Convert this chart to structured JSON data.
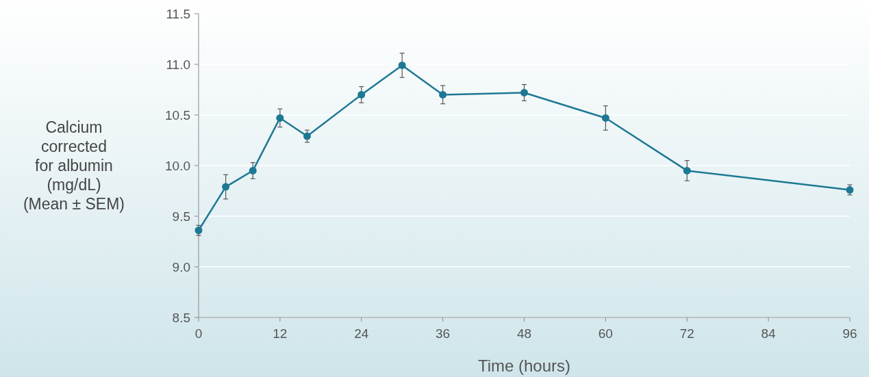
{
  "chart_data": {
    "type": "line",
    "xlabel": "Time (hours)",
    "ylabel": "Calcium\ncorrected\nfor albumin\n(mg/dL)\n(Mean ± SEM)",
    "x": [
      0,
      4,
      8,
      12,
      16,
      24,
      30,
      36,
      48,
      60,
      72,
      96
    ],
    "series": [
      {
        "color": "#1d7894",
        "values": [
          9.36,
          9.79,
          9.95,
          10.47,
          10.29,
          10.7,
          10.99,
          10.7,
          10.72,
          10.47,
          9.95,
          9.76
        ],
        "errors": [
          0.05,
          0.12,
          0.08,
          0.09,
          0.06,
          0.08,
          0.12,
          0.09,
          0.08,
          0.12,
          0.1,
          0.05
        ]
      }
    ],
    "xlim": [
      0,
      96
    ],
    "xticks": [
      0,
      12,
      24,
      36,
      48,
      60,
      72,
      84,
      96
    ],
    "ylim": [
      8.5,
      11.5
    ],
    "yticks": [
      {
        "value": 8.5,
        "label": "8.5"
      },
      {
        "value": 9,
        "label": "9.0"
      },
      {
        "value": 9.5,
        "label": "9.5"
      },
      {
        "value": 10,
        "label": "10.0"
      },
      {
        "value": 10.5,
        "label": "10.5"
      },
      {
        "value": 11,
        "label": "11.0"
      },
      {
        "value": 11.5,
        "label": "11.5"
      }
    ],
    "grid": "y",
    "marker": "circle",
    "line_style": "solid"
  }
}
